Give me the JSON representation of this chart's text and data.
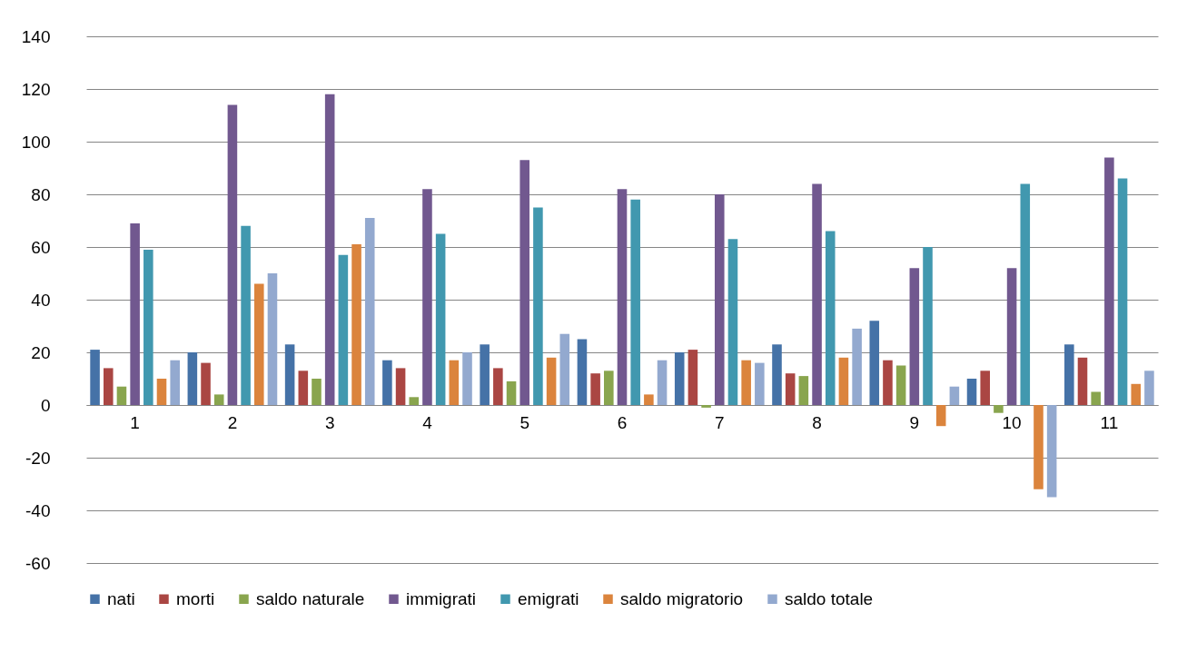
{
  "chart_data": {
    "type": "bar",
    "categories": [
      "1",
      "2",
      "3",
      "4",
      "5",
      "6",
      "7",
      "8",
      "9",
      "10",
      "11"
    ],
    "series": [
      {
        "name": "nati",
        "color": "#4572a7",
        "values": [
          21,
          20,
          23,
          17,
          23,
          25,
          20,
          23,
          32,
          10,
          23
        ]
      },
      {
        "name": "morti",
        "color": "#aa4643",
        "values": [
          14,
          16,
          13,
          14,
          14,
          12,
          21,
          12,
          17,
          13,
          18
        ]
      },
      {
        "name": "saldo naturale",
        "color": "#89a54e",
        "values": [
          7,
          4,
          10,
          3,
          9,
          13,
          -1,
          11,
          15,
          -3,
          5
        ]
      },
      {
        "name": "immigrati",
        "color": "#71588f",
        "values": [
          69,
          114,
          118,
          82,
          93,
          82,
          80,
          84,
          52,
          52,
          94
        ]
      },
      {
        "name": "emigrati",
        "color": "#4198af",
        "values": [
          59,
          68,
          57,
          65,
          75,
          78,
          63,
          66,
          60,
          84,
          86
        ]
      },
      {
        "name": "saldo migratorio",
        "color": "#db843d",
        "values": [
          10,
          46,
          61,
          17,
          18,
          4,
          17,
          18,
          -8,
          -32,
          8
        ]
      },
      {
        "name": "saldo totale",
        "color": "#93a9cf",
        "values": [
          17,
          50,
          71,
          20,
          27,
          17,
          16,
          29,
          7,
          -35,
          13
        ]
      }
    ],
    "ylim": [
      -60,
      140
    ],
    "yticks": [
      -60,
      -40,
      -20,
      0,
      20,
      40,
      60,
      80,
      100,
      120,
      140
    ],
    "grid": "y",
    "legend": "bottom"
  }
}
